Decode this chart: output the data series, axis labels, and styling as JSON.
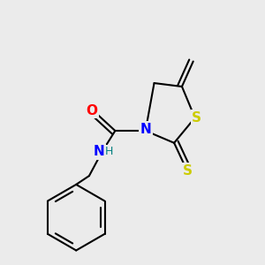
{
  "bg_color": "#ebebeb",
  "bond_color": "#000000",
  "atom_colors": {
    "O": "#ff0000",
    "N": "#0000ff",
    "S": "#cccc00",
    "H": "#008080",
    "C": "#000000"
  },
  "bond_width": 1.5,
  "figsize": [
    3.0,
    3.0
  ],
  "dpi": 100
}
